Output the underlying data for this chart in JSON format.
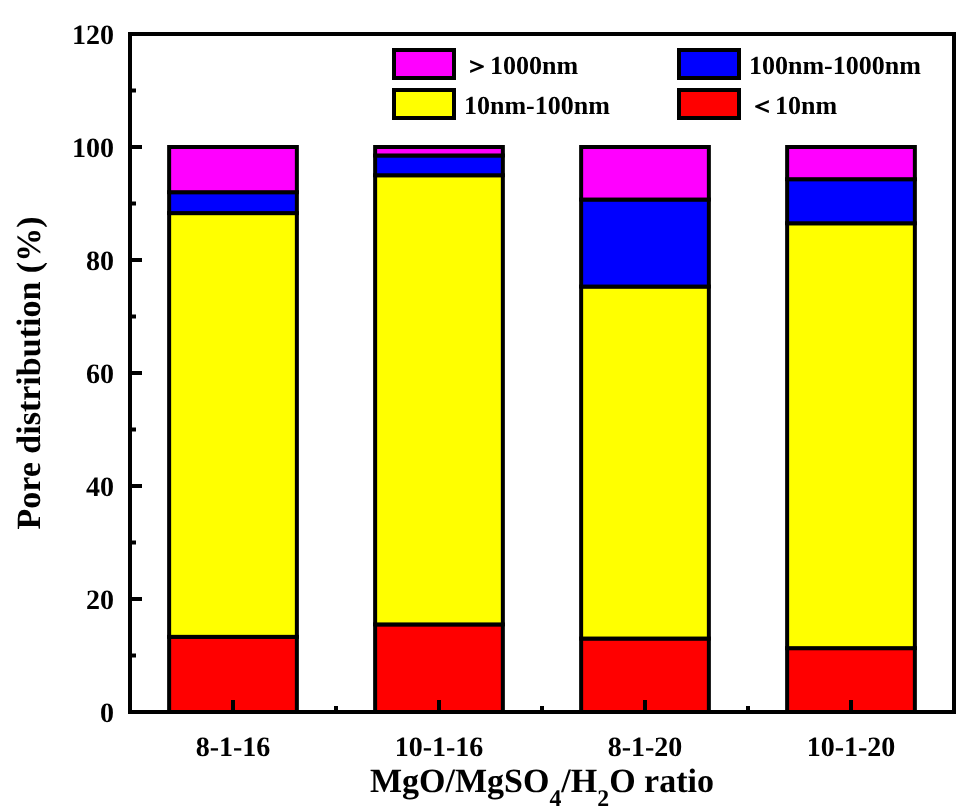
{
  "chart_data": {
    "type": "bar",
    "stacked": true,
    "categories": [
      "8-1-16",
      "10-1-16",
      "8-1-20",
      "10-1-20"
    ],
    "xlabel": "MgO/MgSO$_{4}$/H$_{2}$O ratio",
    "ylabel": "Pore distribution (%)",
    "ylim": [
      0,
      120
    ],
    "yticks": [
      0,
      20,
      40,
      60,
      80,
      100,
      120
    ],
    "legend": "top right",
    "grid": false,
    "series": [
      {
        "name": "＜10nm",
        "color": "#ff0000",
        "values": [
          13.3,
          15.5,
          13,
          11.3
        ]
      },
      {
        "name": "10nm-100nm",
        "color": "#ffff00",
        "values": [
          75,
          79.5,
          62.3,
          75.2
        ]
      },
      {
        "name": "100nm-1000nm",
        "color": "#0000ff",
        "values": [
          3.7,
          3.5,
          15.4,
          7.8
        ]
      },
      {
        "name": "＞1000nm",
        "color": "#ff00ff",
        "values": [
          8,
          1.5,
          9.3,
          5.7
        ]
      }
    ]
  }
}
